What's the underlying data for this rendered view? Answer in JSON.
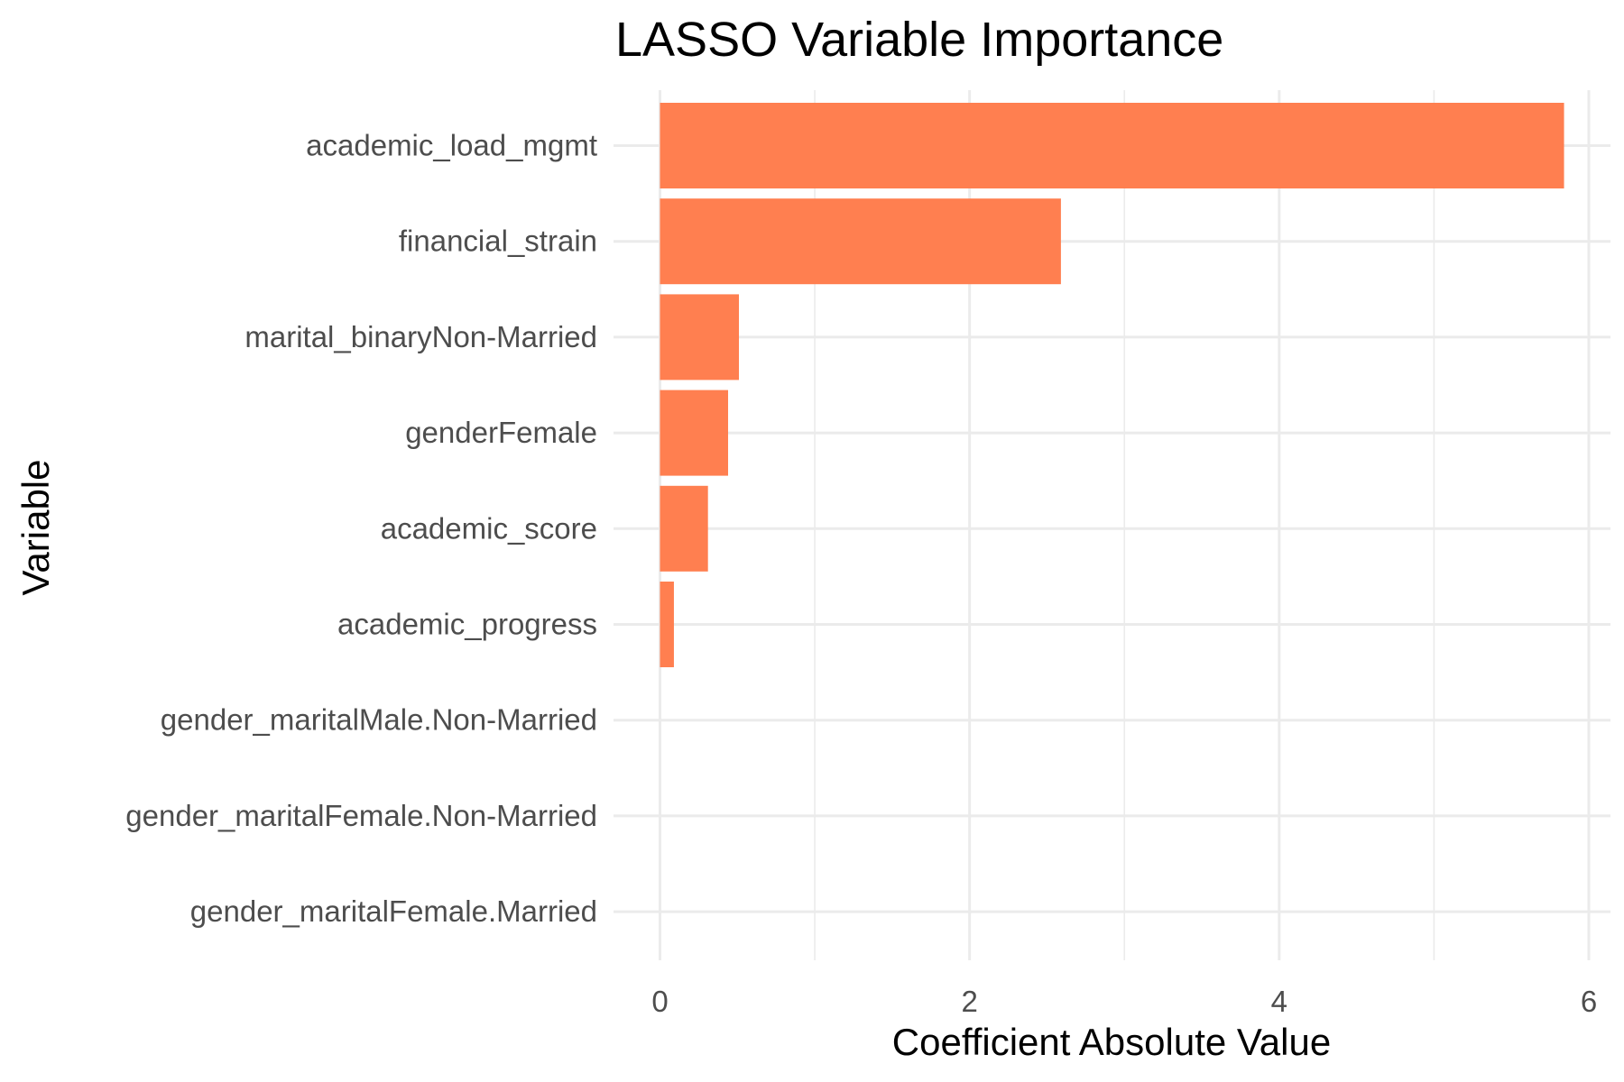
{
  "chart_data": {
    "type": "bar",
    "orientation": "horizontal",
    "title": "LASSO Variable Importance",
    "xlabel": "Coefficient Absolute Value",
    "ylabel": "Variable",
    "xlim": [
      0,
      6
    ],
    "xticks": [
      "0",
      "2",
      "4",
      "6"
    ],
    "grid": true,
    "bar_color": "#FF7F50",
    "grid_color": "#EBEBEB",
    "categories": [
      "academic_load_mgmt",
      "financial_strain",
      "marital_binaryNon-Married",
      "genderFemale",
      "academic_score",
      "academic_progress",
      "gender_maritalMale.Non-Married",
      "gender_maritalFemale.Non-Married",
      "gender_maritalFemale.Married"
    ],
    "values": [
      5.84,
      2.59,
      0.51,
      0.44,
      0.31,
      0.09,
      0,
      0,
      0
    ]
  }
}
